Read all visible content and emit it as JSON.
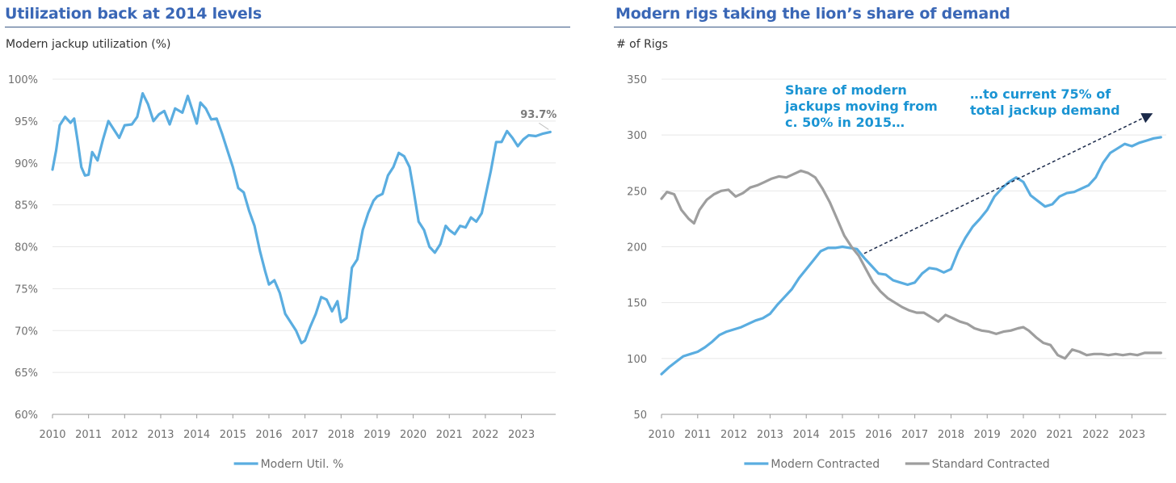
{
  "chart_data": [
    {
      "type": "line",
      "title": "Utilization back at 2014 levels",
      "ylabel": "Modern jackup utilization (%)",
      "xlim": [
        2010,
        2023.95
      ],
      "ylim": [
        60,
        100
      ],
      "x_ticks": [
        "2010",
        "2011",
        "2012",
        "2013",
        "2014",
        "2015",
        "2016",
        "2017",
        "2018",
        "2019",
        "2020",
        "2021",
        "2022",
        "2023"
      ],
      "y_ticks": [
        "60%",
        "65%",
        "70%",
        "75%",
        "80%",
        "85%",
        "90%",
        "95%",
        "100%"
      ],
      "end_label": "93.7%",
      "series": [
        {
          "name": "Modern Util. %",
          "color": "#5aade0",
          "points": [
            [
              2010.0,
              89.2
            ],
            [
              2010.1,
              91.5
            ],
            [
              2010.2,
              94.5
            ],
            [
              2010.35,
              95.5
            ],
            [
              2010.5,
              94.8
            ],
            [
              2010.6,
              95.3
            ],
            [
              2010.7,
              92.5
            ],
            [
              2010.8,
              89.5
            ],
            [
              2010.9,
              88.5
            ],
            [
              2011.0,
              88.6
            ],
            [
              2011.1,
              91.3
            ],
            [
              2011.25,
              90.3
            ],
            [
              2011.4,
              92.8
            ],
            [
              2011.55,
              95.0
            ],
            [
              2011.7,
              94.0
            ],
            [
              2011.85,
              93.0
            ],
            [
              2012.0,
              94.5
            ],
            [
              2012.2,
              94.6
            ],
            [
              2012.35,
              95.5
            ],
            [
              2012.5,
              98.3
            ],
            [
              2012.65,
              97.0
            ],
            [
              2012.8,
              95.0
            ],
            [
              2012.95,
              95.8
            ],
            [
              2013.1,
              96.2
            ],
            [
              2013.25,
              94.6
            ],
            [
              2013.4,
              96.5
            ],
            [
              2013.6,
              96.0
            ],
            [
              2013.75,
              98.0
            ],
            [
              2013.9,
              96.0
            ],
            [
              2014.0,
              94.7
            ],
            [
              2014.1,
              97.2
            ],
            [
              2014.25,
              96.5
            ],
            [
              2014.4,
              95.2
            ],
            [
              2014.55,
              95.3
            ],
            [
              2014.7,
              93.5
            ],
            [
              2014.85,
              91.5
            ],
            [
              2015.0,
              89.5
            ],
            [
              2015.15,
              87.0
            ],
            [
              2015.3,
              86.5
            ],
            [
              2015.45,
              84.3
            ],
            [
              2015.6,
              82.5
            ],
            [
              2015.75,
              79.5
            ],
            [
              2015.9,
              77.0
            ],
            [
              2016.0,
              75.5
            ],
            [
              2016.15,
              76.0
            ],
            [
              2016.3,
              74.5
            ],
            [
              2016.45,
              72.0
            ],
            [
              2016.6,
              71.0
            ],
            [
              2016.75,
              70.0
            ],
            [
              2016.9,
              68.5
            ],
            [
              2017.0,
              68.8
            ],
            [
              2017.15,
              70.5
            ],
            [
              2017.3,
              72.0
            ],
            [
              2017.45,
              74.0
            ],
            [
              2017.6,
              73.7
            ],
            [
              2017.75,
              72.3
            ],
            [
              2017.9,
              73.5
            ],
            [
              2018.0,
              71.0
            ],
            [
              2018.15,
              71.5
            ],
            [
              2018.3,
              77.5
            ],
            [
              2018.45,
              78.5
            ],
            [
              2018.6,
              82.0
            ],
            [
              2018.75,
              84.0
            ],
            [
              2018.9,
              85.5
            ],
            [
              2019.0,
              86.0
            ],
            [
              2019.15,
              86.3
            ],
            [
              2019.3,
              88.5
            ],
            [
              2019.45,
              89.5
            ],
            [
              2019.6,
              91.2
            ],
            [
              2019.75,
              90.8
            ],
            [
              2019.9,
              89.5
            ],
            [
              2020.0,
              87.0
            ],
            [
              2020.15,
              83.0
            ],
            [
              2020.3,
              82.0
            ],
            [
              2020.45,
              80.0
            ],
            [
              2020.6,
              79.3
            ],
            [
              2020.75,
              80.3
            ],
            [
              2020.9,
              82.5
            ],
            [
              2021.0,
              82.0
            ],
            [
              2021.15,
              81.5
            ],
            [
              2021.3,
              82.5
            ],
            [
              2021.45,
              82.3
            ],
            [
              2021.6,
              83.5
            ],
            [
              2021.75,
              83.0
            ],
            [
              2021.9,
              84.0
            ],
            [
              2022.0,
              86.0
            ],
            [
              2022.15,
              89.0
            ],
            [
              2022.3,
              92.5
            ],
            [
              2022.45,
              92.5
            ],
            [
              2022.6,
              93.8
            ],
            [
              2022.75,
              93.0
            ],
            [
              2022.9,
              92.0
            ],
            [
              2023.05,
              92.8
            ],
            [
              2023.2,
              93.3
            ],
            [
              2023.4,
              93.2
            ],
            [
              2023.6,
              93.5
            ],
            [
              2023.8,
              93.7
            ]
          ]
        }
      ],
      "legend": [
        "Modern Util. %"
      ]
    },
    {
      "type": "line",
      "title": "Modern rigs taking the lion’s share of demand",
      "ylabel": "# of Rigs",
      "xlim": [
        2010,
        2023.95
      ],
      "ylim": [
        50,
        350
      ],
      "x_ticks": [
        "2010",
        "2011",
        "2012",
        "2013",
        "2014",
        "2015",
        "2016",
        "2017",
        "2018",
        "2019",
        "2020",
        "2021",
        "2022",
        "2023"
      ],
      "y_ticks": [
        "50",
        "100",
        "150",
        "200",
        "250",
        "300",
        "350"
      ],
      "annotations": [
        {
          "lines": [
            "Share of modern",
            "jackups moving from",
            "c. 50% in 2015…"
          ]
        },
        {
          "lines": [
            "…to current 75% of",
            "total jackup demand"
          ]
        }
      ],
      "series": [
        {
          "name": "Modern Contracted",
          "color": "#5aade0",
          "points": [
            [
              2010.0,
              86
            ],
            [
              2010.2,
              92
            ],
            [
              2010.4,
              97
            ],
            [
              2010.6,
              102
            ],
            [
              2010.8,
              104
            ],
            [
              2011.0,
              106
            ],
            [
              2011.2,
              110
            ],
            [
              2011.4,
              115
            ],
            [
              2011.6,
              121
            ],
            [
              2011.8,
              124
            ],
            [
              2012.0,
              126
            ],
            [
              2012.2,
              128
            ],
            [
              2012.4,
              131
            ],
            [
              2012.6,
              134
            ],
            [
              2012.8,
              136
            ],
            [
              2013.0,
              140
            ],
            [
              2013.2,
              148
            ],
            [
              2013.4,
              155
            ],
            [
              2013.6,
              162
            ],
            [
              2013.8,
              172
            ],
            [
              2014.0,
              180
            ],
            [
              2014.2,
              188
            ],
            [
              2014.4,
              196
            ],
            [
              2014.6,
              199
            ],
            [
              2014.8,
              199
            ],
            [
              2015.0,
              200
            ],
            [
              2015.2,
              199
            ],
            [
              2015.4,
              198
            ],
            [
              2015.6,
              190
            ],
            [
              2015.8,
              183
            ],
            [
              2016.0,
              176
            ],
            [
              2016.2,
              175
            ],
            [
              2016.4,
              170
            ],
            [
              2016.6,
              168
            ],
            [
              2016.8,
              166
            ],
            [
              2017.0,
              168
            ],
            [
              2017.2,
              176
            ],
            [
              2017.4,
              181
            ],
            [
              2017.6,
              180
            ],
            [
              2017.8,
              177
            ],
            [
              2018.0,
              180
            ],
            [
              2018.2,
              196
            ],
            [
              2018.4,
              208
            ],
            [
              2018.6,
              218
            ],
            [
              2018.8,
              225
            ],
            [
              2019.0,
              233
            ],
            [
              2019.2,
              245
            ],
            [
              2019.4,
              252
            ],
            [
              2019.6,
              258
            ],
            [
              2019.8,
              262
            ],
            [
              2020.0,
              258
            ],
            [
              2020.2,
              246
            ],
            [
              2020.4,
              241
            ],
            [
              2020.6,
              236
            ],
            [
              2020.8,
              238
            ],
            [
              2021.0,
              245
            ],
            [
              2021.2,
              248
            ],
            [
              2021.4,
              249
            ],
            [
              2021.6,
              252
            ],
            [
              2021.8,
              255
            ],
            [
              2022.0,
              262
            ],
            [
              2022.2,
              275
            ],
            [
              2022.4,
              284
            ],
            [
              2022.6,
              288
            ],
            [
              2022.8,
              292
            ],
            [
              2023.0,
              290
            ],
            [
              2023.2,
              293
            ],
            [
              2023.4,
              295
            ],
            [
              2023.6,
              297
            ],
            [
              2023.8,
              298
            ]
          ]
        },
        {
          "name": "Standard Contracted",
          "color": "#9e9e9e",
          "points": [
            [
              2010.0,
              243
            ],
            [
              2010.15,
              249
            ],
            [
              2010.35,
              247
            ],
            [
              2010.55,
              233
            ],
            [
              2010.75,
              225
            ],
            [
              2010.9,
              221
            ],
            [
              2011.05,
              233
            ],
            [
              2011.25,
              242
            ],
            [
              2011.45,
              247
            ],
            [
              2011.65,
              250
            ],
            [
              2011.85,
              251
            ],
            [
              2012.05,
              245
            ],
            [
              2012.25,
              248
            ],
            [
              2012.45,
              253
            ],
            [
              2012.65,
              255
            ],
            [
              2012.85,
              258
            ],
            [
              2013.05,
              261
            ],
            [
              2013.25,
              263
            ],
            [
              2013.45,
              262
            ],
            [
              2013.65,
              265
            ],
            [
              2013.85,
              268
            ],
            [
              2014.05,
              266
            ],
            [
              2014.25,
              262
            ],
            [
              2014.45,
              252
            ],
            [
              2014.65,
              240
            ],
            [
              2014.85,
              225
            ],
            [
              2015.05,
              210
            ],
            [
              2015.25,
              200
            ],
            [
              2015.45,
              192
            ],
            [
              2015.65,
              180
            ],
            [
              2015.85,
              168
            ],
            [
              2016.05,
              160
            ],
            [
              2016.25,
              154
            ],
            [
              2016.45,
              150
            ],
            [
              2016.65,
              146
            ],
            [
              2016.85,
              143
            ],
            [
              2017.05,
              141
            ],
            [
              2017.25,
              141
            ],
            [
              2017.45,
              137
            ],
            [
              2017.65,
              133
            ],
            [
              2017.85,
              139
            ],
            [
              2018.05,
              136
            ],
            [
              2018.25,
              133
            ],
            [
              2018.45,
              131
            ],
            [
              2018.65,
              127
            ],
            [
              2018.85,
              125
            ],
            [
              2019.05,
              124
            ],
            [
              2019.25,
              122
            ],
            [
              2019.45,
              124
            ],
            [
              2019.65,
              125
            ],
            [
              2019.85,
              127
            ],
            [
              2020.0,
              128
            ],
            [
              2020.15,
              125
            ],
            [
              2020.35,
              119
            ],
            [
              2020.55,
              114
            ],
            [
              2020.75,
              112
            ],
            [
              2020.95,
              103
            ],
            [
              2021.15,
              100
            ],
            [
              2021.35,
              108
            ],
            [
              2021.55,
              106
            ],
            [
              2021.75,
              103
            ],
            [
              2021.95,
              104
            ],
            [
              2022.15,
              104
            ],
            [
              2022.35,
              103
            ],
            [
              2022.55,
              104
            ],
            [
              2022.75,
              103
            ],
            [
              2022.95,
              104
            ],
            [
              2023.15,
              103
            ],
            [
              2023.35,
              105
            ],
            [
              2023.55,
              105
            ],
            [
              2023.8,
              105
            ]
          ]
        }
      ],
      "legend": [
        "Modern Contracted",
        "Standard Contracted"
      ]
    }
  ]
}
